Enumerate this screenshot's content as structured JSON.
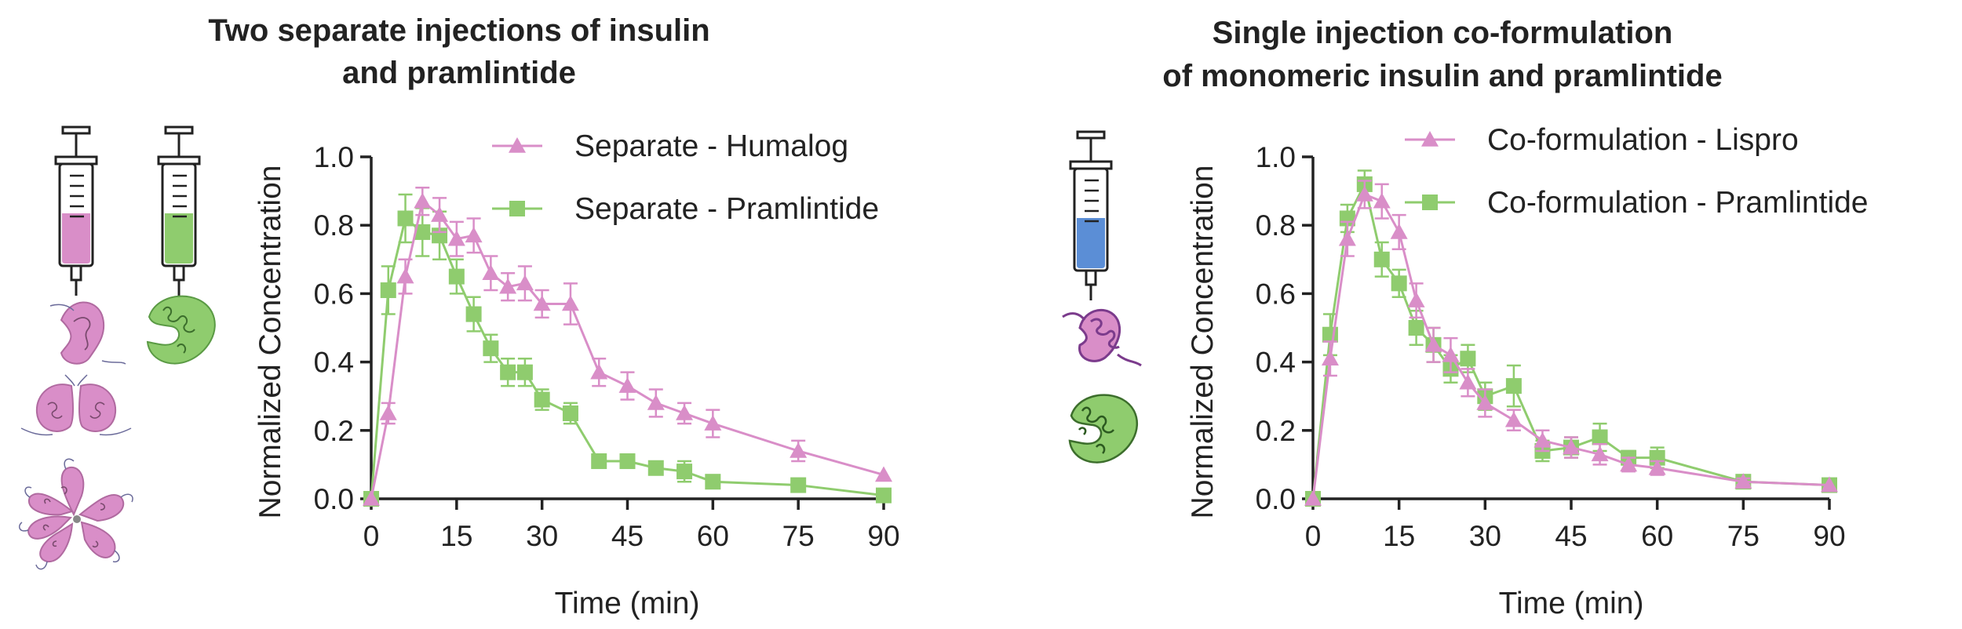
{
  "panels": [
    {
      "title_lines": [
        "Two separate injections of insulin",
        "and pramlintide"
      ],
      "icon_names": [
        "syringe-pink-icon",
        "syringe-green-icon",
        "insulin-monomer-icon",
        "insulin-dimer-icon",
        "insulin-hexamer-icon",
        "pramlintide-icon"
      ]
    },
    {
      "title_lines": [
        "Single injection co-formulation",
        "of monomeric insulin and pramlintide"
      ],
      "icon_names": [
        "syringe-blue-icon",
        "insulin-monomer-purple-icon",
        "pramlintide-icon"
      ]
    }
  ],
  "colors": {
    "insulin": "#d98ec8",
    "pramlintide": "#8fcc6e",
    "blue_fill": "#5b8ed6",
    "purple": "#7b3b8c"
  },
  "chart_data": [
    {
      "type": "line",
      "title": "Two separate injections of insulin and pramlintide",
      "xlabel": "Time (min)",
      "ylabel": "Normalized Concentration",
      "xlim": [
        0,
        90
      ],
      "ylim": [
        0,
        1.0
      ],
      "xticks": [
        "0",
        "15",
        "30",
        "45",
        "60",
        "75",
        "90"
      ],
      "yticks": [
        "0.0",
        "0.2",
        "0.4",
        "0.6",
        "0.8",
        "1.0"
      ],
      "legend_position": "top-right",
      "series": [
        {
          "name": "Separate - Humalog",
          "color": "#d98ec8",
          "marker": "triangle",
          "x": [
            0,
            3,
            6,
            9,
            12,
            15,
            18,
            21,
            24,
            27,
            30,
            35,
            40,
            45,
            50,
            55,
            60,
            75,
            90
          ],
          "y": [
            0.0,
            0.25,
            0.65,
            0.87,
            0.83,
            0.76,
            0.77,
            0.66,
            0.62,
            0.63,
            0.57,
            0.57,
            0.37,
            0.33,
            0.28,
            0.25,
            0.22,
            0.14,
            0.07
          ],
          "err": [
            0,
            0.03,
            0.05,
            0.04,
            0.05,
            0.05,
            0.05,
            0.05,
            0.04,
            0.05,
            0.04,
            0.06,
            0.04,
            0.04,
            0.04,
            0.03,
            0.04,
            0.03,
            0
          ]
        },
        {
          "name": "Separate - Pramlintide",
          "color": "#8fcc6e",
          "marker": "square",
          "x": [
            0,
            3,
            6,
            9,
            12,
            15,
            18,
            21,
            24,
            27,
            30,
            35,
            40,
            45,
            50,
            55,
            60,
            75,
            90
          ],
          "y": [
            0.0,
            0.61,
            0.82,
            0.78,
            0.77,
            0.65,
            0.54,
            0.44,
            0.37,
            0.37,
            0.29,
            0.25,
            0.11,
            0.11,
            0.09,
            0.08,
            0.05,
            0.04,
            0.01
          ],
          "err": [
            0,
            0.07,
            0.07,
            0.07,
            0.07,
            0.05,
            0.05,
            0.04,
            0.04,
            0.04,
            0.03,
            0.03,
            0.02,
            0.02,
            0.01,
            0.03,
            0.01,
            0.01,
            0
          ]
        }
      ]
    },
    {
      "type": "line",
      "title": "Single injection co-formulation of monomeric insulin and pramlintide",
      "xlabel": "Time (min)",
      "ylabel": "Normalized Concentration",
      "xlim": [
        0,
        90
      ],
      "ylim": [
        0,
        1.0
      ],
      "xticks": [
        "0",
        "15",
        "30",
        "45",
        "60",
        "75",
        "90"
      ],
      "yticks": [
        "0.0",
        "0.2",
        "0.4",
        "0.6",
        "0.8",
        "1.0"
      ],
      "legend_position": "top-right",
      "series": [
        {
          "name": "Co-formulation - Lispro",
          "color": "#d98ec8",
          "marker": "triangle",
          "x": [
            0,
            3,
            6,
            9,
            12,
            15,
            18,
            21,
            24,
            27,
            30,
            35,
            40,
            45,
            50,
            55,
            60,
            75,
            90
          ],
          "y": [
            0.0,
            0.41,
            0.76,
            0.89,
            0.87,
            0.78,
            0.58,
            0.45,
            0.42,
            0.34,
            0.28,
            0.23,
            0.17,
            0.15,
            0.13,
            0.1,
            0.09,
            0.05,
            0.04
          ],
          "err": [
            0,
            0.05,
            0.05,
            0.04,
            0.05,
            0.05,
            0.05,
            0.05,
            0.05,
            0.04,
            0.04,
            0.03,
            0.03,
            0.03,
            0.03,
            0.02,
            0.02,
            0.01,
            0
          ]
        },
        {
          "name": "Co-formulation - Pramlintide",
          "color": "#8fcc6e",
          "marker": "square",
          "x": [
            0,
            3,
            6,
            9,
            12,
            15,
            18,
            21,
            24,
            27,
            30,
            35,
            40,
            45,
            50,
            55,
            60,
            75,
            90
          ],
          "y": [
            0.0,
            0.48,
            0.82,
            0.92,
            0.7,
            0.63,
            0.5,
            0.45,
            0.38,
            0.41,
            0.3,
            0.33,
            0.14,
            0.15,
            0.18,
            0.12,
            0.12,
            0.05,
            0.04
          ],
          "err": [
            0,
            0.06,
            0.04,
            0.04,
            0.05,
            0.04,
            0.05,
            0.05,
            0.04,
            0.04,
            0.04,
            0.06,
            0.03,
            0.03,
            0.04,
            0.02,
            0.03,
            0.01,
            0
          ]
        }
      ]
    }
  ]
}
